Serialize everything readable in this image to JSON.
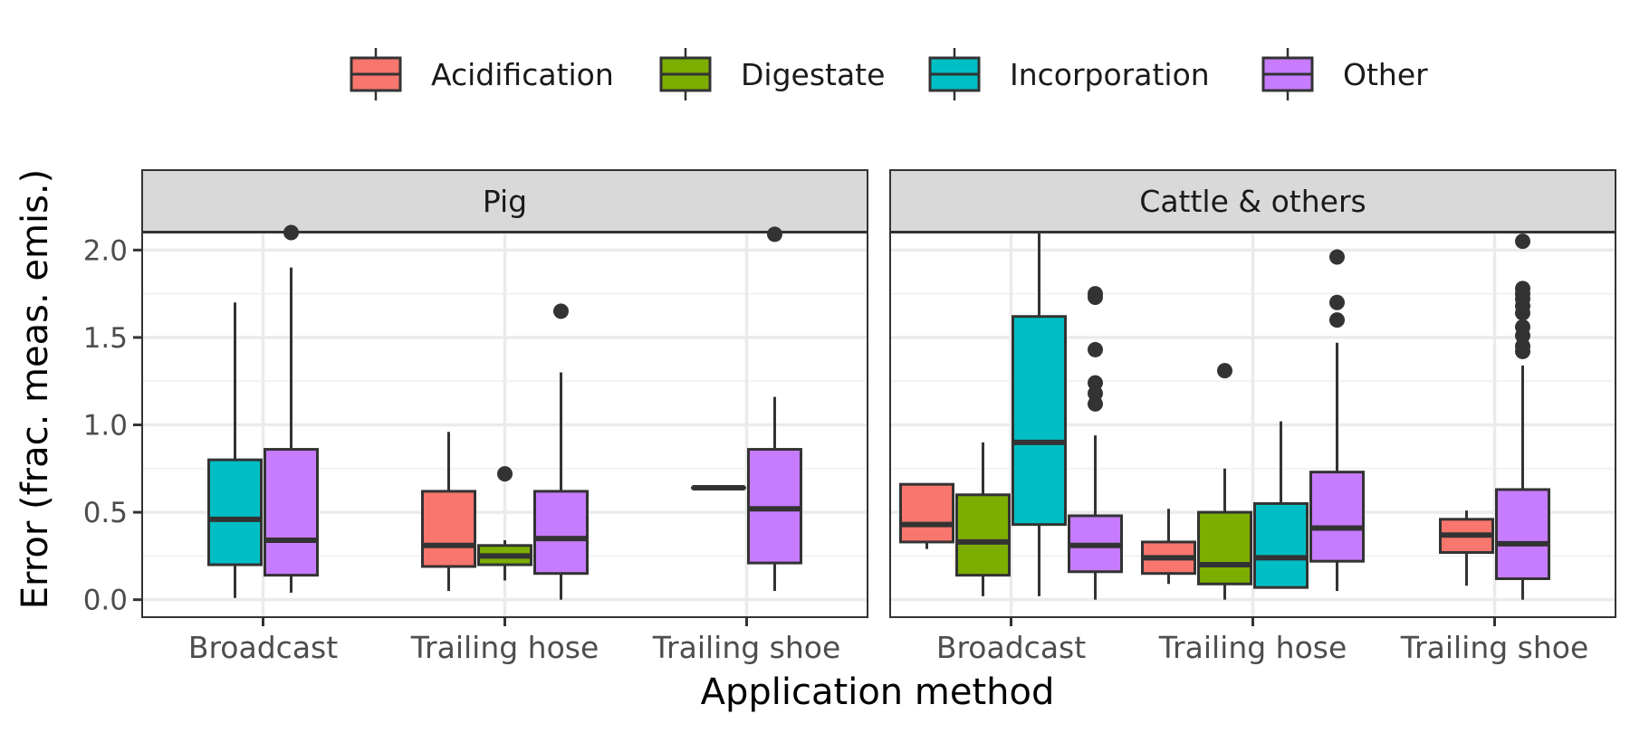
{
  "chart_data": {
    "type": "boxplot",
    "xlabel": "Application method",
    "ylabel": "Error (frac. meas. emis.)",
    "ylim": [
      -0.1,
      2.1
    ],
    "yticks": [
      0.0,
      0.5,
      1.0,
      1.5,
      2.0
    ],
    "ytick_labels": [
      "0.0",
      "0.5",
      "1.0",
      "1.5",
      "2.0"
    ],
    "categories": [
      "Broadcast",
      "Trailing hose",
      "Trailing shoe"
    ],
    "legend": {
      "position": "top",
      "items": [
        {
          "name": "Acidification",
          "color": "#F8766D"
        },
        {
          "name": "Digestate",
          "color": "#7CAE00"
        },
        {
          "name": "Incorporation",
          "color": "#00BFC4"
        },
        {
          "name": "Other",
          "color": "#C77CFF"
        }
      ]
    },
    "facets": [
      {
        "name": "Pig",
        "boxes": [
          {
            "category": "Broadcast",
            "group": "Incorporation",
            "min": 0.01,
            "q1": 0.2,
            "median": 0.46,
            "q3": 0.8,
            "max": 1.7,
            "outliers": []
          },
          {
            "category": "Broadcast",
            "group": "Other",
            "min": 0.04,
            "q1": 0.14,
            "median": 0.34,
            "q3": 0.86,
            "max": 1.9,
            "outliers": [
              2.1
            ]
          },
          {
            "category": "Trailing hose",
            "group": "Acidification",
            "min": 0.05,
            "q1": 0.19,
            "median": 0.31,
            "q3": 0.62,
            "max": 0.96,
            "outliers": []
          },
          {
            "category": "Trailing hose",
            "group": "Digestate",
            "min": 0.11,
            "q1": 0.2,
            "median": 0.25,
            "q3": 0.31,
            "max": 0.34,
            "outliers": [
              0.72
            ]
          },
          {
            "category": "Trailing hose",
            "group": "Other",
            "min": 0.0,
            "q1": 0.15,
            "median": 0.35,
            "q3": 0.62,
            "max": 1.3,
            "outliers": [
              1.65
            ]
          },
          {
            "category": "Trailing shoe",
            "group": "Acidification",
            "min": 0.64,
            "q1": 0.64,
            "median": 0.64,
            "q3": 0.64,
            "max": 0.64,
            "outliers": []
          },
          {
            "category": "Trailing shoe",
            "group": "Other",
            "min": 0.05,
            "q1": 0.21,
            "median": 0.52,
            "q3": 0.86,
            "max": 1.16,
            "outliers": [
              2.09
            ]
          }
        ]
      },
      {
        "name": "Cattle & others",
        "boxes": [
          {
            "category": "Broadcast",
            "group": "Acidification",
            "min": 0.29,
            "q1": 0.33,
            "median": 0.43,
            "q3": 0.66,
            "max": 0.66,
            "outliers": []
          },
          {
            "category": "Broadcast",
            "group": "Digestate",
            "min": 0.02,
            "q1": 0.14,
            "median": 0.33,
            "q3": 0.6,
            "max": 0.9,
            "outliers": []
          },
          {
            "category": "Broadcast",
            "group": "Incorporation",
            "min": 0.02,
            "q1": 0.43,
            "median": 0.9,
            "q3": 1.62,
            "max": 2.1,
            "outliers": []
          },
          {
            "category": "Broadcast",
            "group": "Other",
            "min": 0.0,
            "q1": 0.16,
            "median": 0.31,
            "q3": 0.48,
            "max": 0.94,
            "outliers": [
              1.12,
              1.18,
              1.24,
              1.43,
              1.73,
              1.75
            ]
          },
          {
            "category": "Trailing hose",
            "group": "Acidification",
            "min": 0.09,
            "q1": 0.15,
            "median": 0.24,
            "q3": 0.33,
            "max": 0.52,
            "outliers": []
          },
          {
            "category": "Trailing hose",
            "group": "Digestate",
            "min": 0.0,
            "q1": 0.09,
            "median": 0.2,
            "q3": 0.5,
            "max": 0.75,
            "outliers": [
              1.31
            ]
          },
          {
            "category": "Trailing hose",
            "group": "Incorporation",
            "min": 0.07,
            "q1": 0.07,
            "median": 0.24,
            "q3": 0.55,
            "max": 1.02,
            "outliers": []
          },
          {
            "category": "Trailing hose",
            "group": "Other",
            "min": 0.05,
            "q1": 0.22,
            "median": 0.41,
            "q3": 0.73,
            "max": 1.47,
            "outliers": [
              1.6,
              1.7,
              1.96
            ]
          },
          {
            "category": "Trailing shoe",
            "group": "Acidification",
            "min": 0.08,
            "q1": 0.27,
            "median": 0.37,
            "q3": 0.46,
            "max": 0.51,
            "outliers": []
          },
          {
            "category": "Trailing shoe",
            "group": "Other",
            "min": 0.0,
            "q1": 0.12,
            "median": 0.32,
            "q3": 0.63,
            "max": 1.34,
            "outliers": [
              1.42,
              1.45,
              1.51,
              1.56,
              1.64,
              1.68,
              1.72,
              1.75,
              1.78,
              2.05
            ]
          }
        ]
      }
    ]
  }
}
